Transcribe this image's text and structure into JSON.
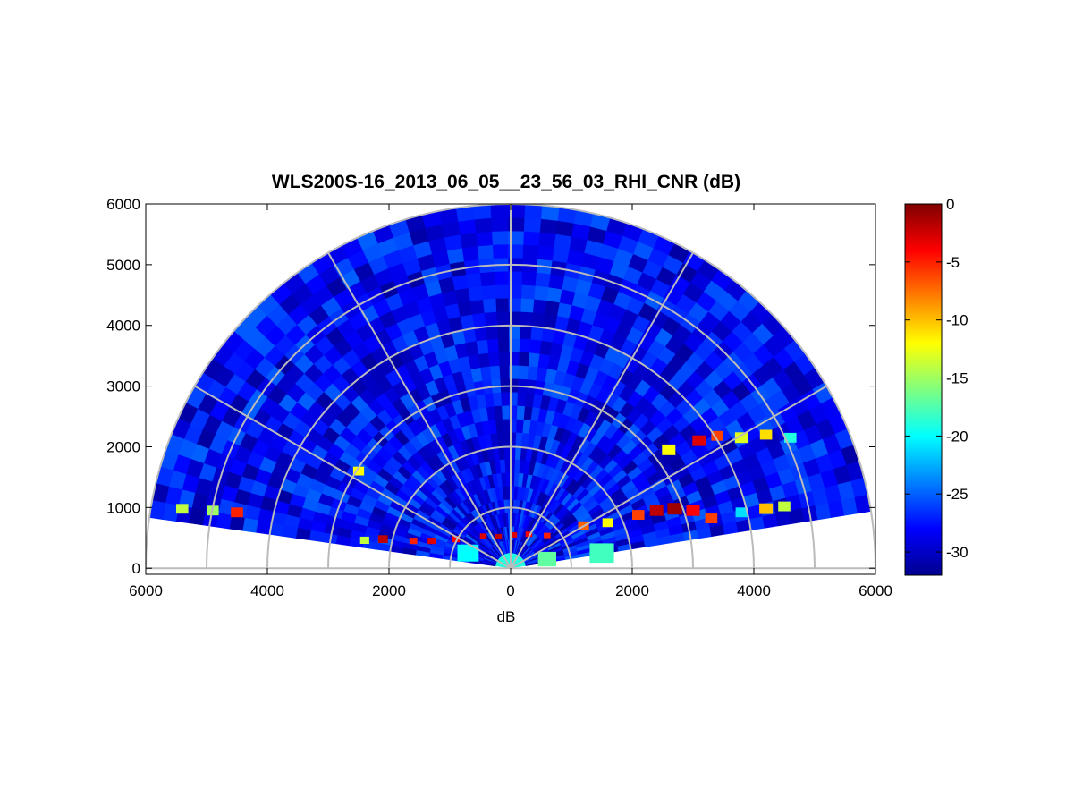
{
  "chart_data": {
    "type": "heatmap",
    "subtype": "polar-rhi-scan",
    "title": "WLS200S-16_2013_06_05__23_56_03_RHI_CNR (dB)",
    "xlabel": "dB",
    "ylabel": "",
    "x_tick_labels": [
      "6000",
      "4000",
      "2000",
      "0",
      "2000",
      "4000",
      "6000"
    ],
    "x_tick_values": [
      -6000,
      -4000,
      -2000,
      0,
      2000,
      4000,
      6000
    ],
    "y_tick_labels": [
      "0",
      "1000",
      "2000",
      "3000",
      "4000",
      "5000",
      "6000"
    ],
    "y_tick_values": [
      0,
      1000,
      2000,
      3000,
      4000,
      5000,
      6000
    ],
    "xlim": [
      -6000,
      6000
    ],
    "ylim": [
      -100,
      6000
    ],
    "range_max": 6000,
    "range_rings": [
      1000,
      2000,
      3000,
      4000,
      5000,
      6000
    ],
    "radial_lines_deg": [
      30,
      60,
      90,
      120,
      150
    ],
    "scan_elevation_limits_deg": [
      9,
      172
    ],
    "grid": true,
    "colorbar": {
      "colormap": "jet",
      "range": [
        -32,
        0
      ],
      "tick_values": [
        0,
        -5,
        -10,
        -15,
        -20,
        -25,
        -30
      ],
      "tick_labels": [
        "0",
        "-5",
        "-10",
        "-15",
        "-20",
        "-25",
        "-30"
      ]
    },
    "background_cnr_db": -28,
    "features": [
      {
        "x": -450,
        "y": 530,
        "cnr_db": -3,
        "size": 110
      },
      {
        "x": -200,
        "y": 520,
        "cnr_db": -2,
        "size": 110
      },
      {
        "x": 50,
        "y": 550,
        "cnr_db": -3,
        "size": 110
      },
      {
        "x": 300,
        "y": 560,
        "cnr_db": -4,
        "size": 110
      },
      {
        "x": 600,
        "y": 540,
        "cnr_db": -5,
        "size": 110
      },
      {
        "x": -900,
        "y": 480,
        "cnr_db": -4,
        "size": 130
      },
      {
        "x": -1300,
        "y": 450,
        "cnr_db": -3,
        "size": 130
      },
      {
        "x": -1600,
        "y": 450,
        "cnr_db": -5,
        "size": 130
      },
      {
        "x": -2100,
        "y": 480,
        "cnr_db": -2,
        "size": 160
      },
      {
        "x": -2400,
        "y": 460,
        "cnr_db": -14,
        "size": 150
      },
      {
        "x": -2500,
        "y": 1600,
        "cnr_db": -12,
        "size": 180
      },
      {
        "x": -4500,
        "y": 920,
        "cnr_db": -5,
        "size": 200
      },
      {
        "x": -4900,
        "y": 950,
        "cnr_db": -15,
        "size": 200
      },
      {
        "x": -5400,
        "y": 980,
        "cnr_db": -14,
        "size": 200
      },
      {
        "x": 1200,
        "y": 700,
        "cnr_db": -7,
        "size": 180
      },
      {
        "x": 1600,
        "y": 750,
        "cnr_db": -12,
        "size": 180
      },
      {
        "x": 2100,
        "y": 880,
        "cnr_db": -6,
        "size": 200
      },
      {
        "x": 2400,
        "y": 950,
        "cnr_db": -2,
        "size": 220
      },
      {
        "x": 2700,
        "y": 980,
        "cnr_db": -1,
        "size": 240
      },
      {
        "x": 3000,
        "y": 950,
        "cnr_db": -4,
        "size": 220
      },
      {
        "x": 3300,
        "y": 820,
        "cnr_db": -6,
        "size": 200
      },
      {
        "x": 3800,
        "y": 920,
        "cnr_db": -21,
        "size": 200
      },
      {
        "x": 4200,
        "y": 980,
        "cnr_db": -10,
        "size": 220
      },
      {
        "x": 4500,
        "y": 1020,
        "cnr_db": -14,
        "size": 200
      },
      {
        "x": 2600,
        "y": 1950,
        "cnr_db": -12,
        "size": 220
      },
      {
        "x": 3100,
        "y": 2100,
        "cnr_db": -3,
        "size": 220
      },
      {
        "x": 3400,
        "y": 2180,
        "cnr_db": -6,
        "size": 200
      },
      {
        "x": 3800,
        "y": 2150,
        "cnr_db": -13,
        "size": 220
      },
      {
        "x": 4200,
        "y": 2200,
        "cnr_db": -11,
        "size": 200
      },
      {
        "x": 4600,
        "y": 2150,
        "cnr_db": -19,
        "size": 200
      },
      {
        "x": 1500,
        "y": 250,
        "cnr_db": -18,
        "size": 400
      },
      {
        "x": -700,
        "y": 250,
        "cnr_db": -20,
        "size": 350
      },
      {
        "x": 600,
        "y": 150,
        "cnr_db": -17,
        "size": 300
      }
    ]
  }
}
